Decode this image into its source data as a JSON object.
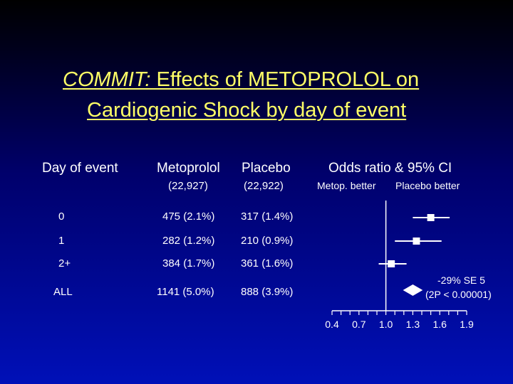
{
  "title": {
    "italic": "COMMIT:",
    "line1_rest": " Effects of METOPROLOL on",
    "line2": "Cardiogenic Shock by day of event"
  },
  "headers": {
    "day": "Day of event",
    "metoprolol": "Metoprolol",
    "placebo": "Placebo",
    "or": "Odds ratio & 95% CI",
    "metoprolol_n": "(22,927)",
    "placebo_n": "(22,922)",
    "metop_better": "Metop. better",
    "placebo_better": "Placebo better"
  },
  "rows": [
    {
      "day": "0",
      "metoprolol": "475 (2.1%)",
      "placebo": "317 (1.4%)"
    },
    {
      "day": "1",
      "metoprolol": "282 (1.2%)",
      "placebo": "210 (0.9%)"
    },
    {
      "day": "2+",
      "metoprolol": "384 (1.7%)",
      "placebo": "361 (1.6%)"
    },
    {
      "day": "ALL",
      "metoprolol": "1141 (5.0%)",
      "placebo": "888 (3.9%)"
    }
  ],
  "summary_note": {
    "line1": "-29% SE 5",
    "line2": "(2P < 0.00001)"
  },
  "colors": {
    "title": "#ffff66",
    "text": "#ffffff"
  },
  "chart_data": {
    "type": "forest",
    "categories": [
      "0",
      "1",
      "2+",
      "ALL"
    ],
    "or": [
      1.5,
      1.34,
      1.06,
      1.3
    ],
    "ci_low": [
      1.3,
      1.1,
      0.92,
      1.19
    ],
    "ci_high": [
      1.71,
      1.62,
      1.23,
      1.41
    ],
    "summary_index": 3,
    "reference_line": 1.0,
    "xlim": [
      0.4,
      1.9
    ],
    "x_ticks": [
      0.4,
      0.7,
      1.0,
      1.3,
      1.6,
      1.9
    ],
    "x_tick_labels": [
      "0.4",
      "0.7",
      "1.0",
      "1.3",
      "1.6",
      "1.9"
    ]
  }
}
